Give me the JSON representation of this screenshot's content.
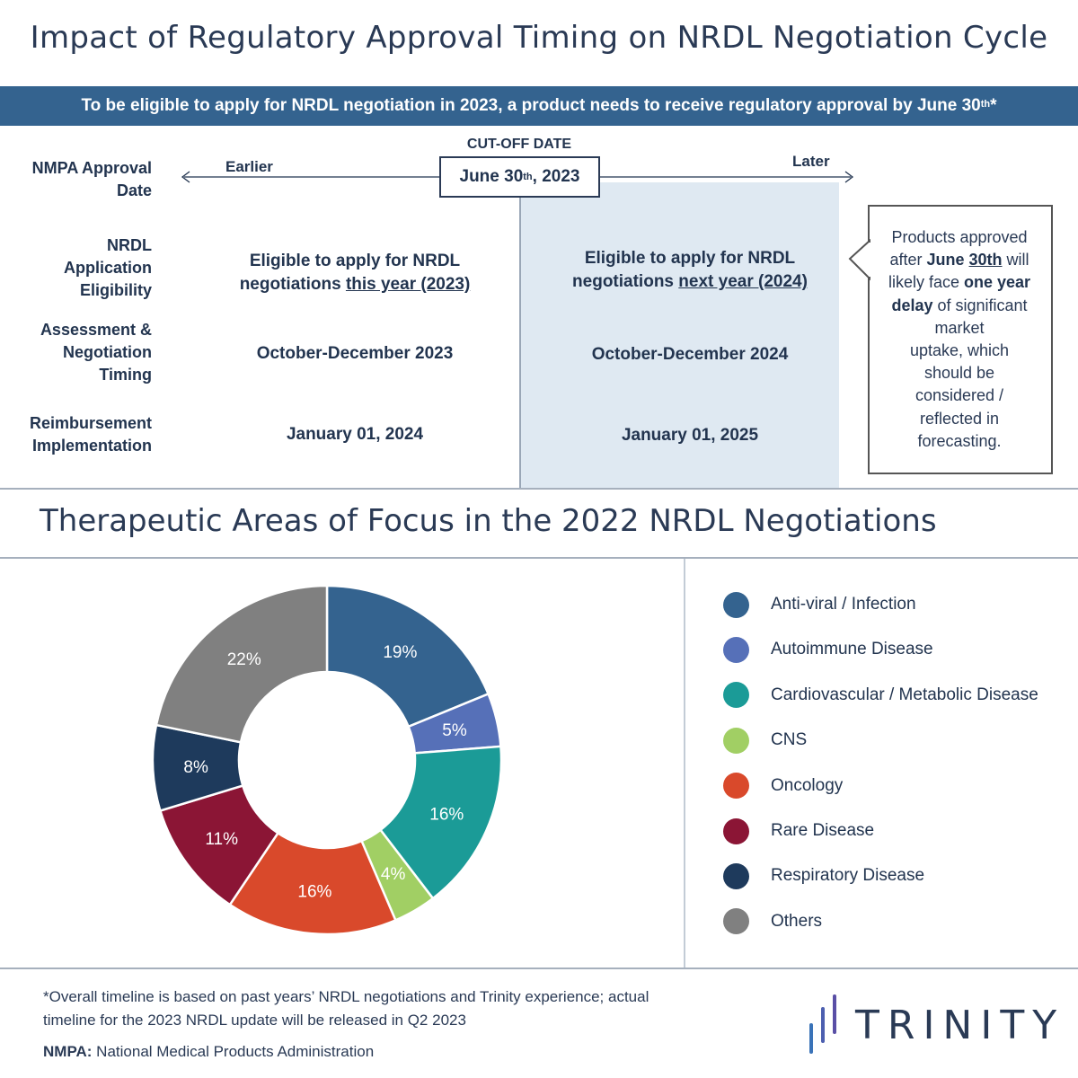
{
  "title": "Impact of Regulatory Approval Timing on NRDL Negotiation Cycle",
  "banner": {
    "text": "To be eligible to apply for NRDL negotiation in 2023, a product needs to receive regulatory approval by June 30",
    "sup": "th",
    "suffix": "*"
  },
  "timeline": {
    "earlier": "Earlier",
    "later": "Later",
    "cutoff_label": "CUT-OFF DATE",
    "cutoff_date_pre": "June 30",
    "cutoff_date_sup": "th",
    "cutoff_date_post": ", 2023"
  },
  "row_labels": {
    "approval": [
      "NMPA Approval",
      "Date"
    ],
    "eligibility": [
      "NRDL",
      "Application",
      "Eligibility"
    ],
    "assessment": [
      "Assessment &",
      "Negotiation",
      "Timing"
    ],
    "reimbursement": [
      "Reimbursement",
      "Implementation"
    ]
  },
  "earlier_col": {
    "eligibility_line1": "Eligible to apply for NRDL",
    "eligibility_line2_pre": "negotiations ",
    "eligibility_line2_u": "this year (2023)",
    "assessment": "October-December 2023",
    "reimbursement": "January 01, 2024"
  },
  "later_col": {
    "eligibility_line1": "Eligible to apply for NRDL",
    "eligibility_line2_pre": "negotiations ",
    "eligibility_line2_u": "next year (2024)",
    "assessment": "October-December 2024",
    "reimbursement": "January 01, 2025"
  },
  "note": {
    "l1": "Products approved",
    "l2_pre": "after ",
    "l2_b": "June ",
    "l2_bu": "30th",
    "l2_post": " will",
    "l3_pre": "likely face ",
    "l3_b": "one year",
    "l4_b": "delay",
    "l4_post": " of significant",
    "l5": "market",
    "l6": "uptake, which",
    "l7": "should be",
    "l8": "considered /",
    "l9": "reflected in",
    "l10": "forecasting."
  },
  "section2_title": "Therapeutic Areas of Focus in the 2022 NRDL Negotiations",
  "chart_data": {
    "type": "pie",
    "donut": true,
    "categories": [
      "Anti-viral / Infection",
      "Autoimmune Disease",
      "Cardiovascular / Metabolic Disease",
      "CNS",
      "Oncology",
      "Rare Disease",
      "Respiratory Disease",
      "Others"
    ],
    "values": [
      19,
      5,
      16,
      4,
      16,
      11,
      8,
      22
    ],
    "labels": [
      "19%",
      "5%",
      "16%",
      "4%",
      "16%",
      "11%",
      "8%",
      "22%"
    ],
    "colors": [
      "#34638f",
      "#5670b8",
      "#1b9b97",
      "#a1cf64",
      "#d9492b",
      "#8b1535",
      "#1e3a5c",
      "#808080"
    ],
    "legend_position": "right"
  },
  "footnote": {
    "line1": "*Overall timeline is based on past years’ NRDL negotiations and Trinity experience; actual",
    "line2": "timeline for the 2023 NRDL update will be released in Q2 2023"
  },
  "nmpa_note": {
    "abbr": "NMPA:",
    "text": " National Medical Products Administration"
  },
  "logo": {
    "text": "TRINITY",
    "colors": [
      "#3a73b8",
      "#4d5fb0",
      "#5a4fa6"
    ]
  }
}
